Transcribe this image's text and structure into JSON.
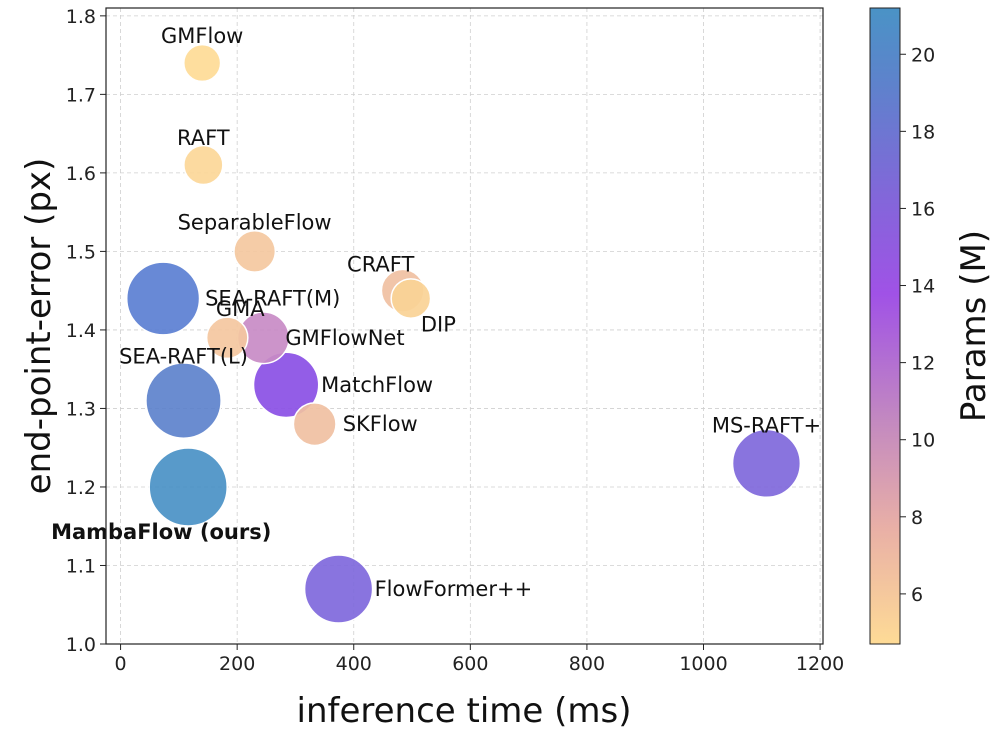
{
  "chart_data": {
    "type": "scatter",
    "title": "",
    "xlabel": "inference time (ms)",
    "ylabel": "end-point-error (px)",
    "xlim": [
      -25,
      1205
    ],
    "ylim": [
      1.0,
      1.81
    ],
    "xticks": [
      "0",
      "200",
      "400",
      "600",
      "800",
      "1000",
      "1200"
    ],
    "yticks": [
      "1.0",
      "1.1",
      "1.2",
      "1.3",
      "1.4",
      "1.5",
      "1.6",
      "1.7",
      "1.8"
    ],
    "grid": true,
    "colorbar": {
      "label": "Params (M)",
      "range": [
        4.7,
        21.2
      ],
      "ticks": [
        "6",
        "8",
        "10",
        "12",
        "14",
        "16",
        "18",
        "20"
      ],
      "colors": [
        "#fedb96",
        "#e9b0a6",
        "#c389c0",
        "#a052e6",
        "#7f69d8",
        "#5e82cc",
        "#4a93c6"
      ]
    },
    "points": [
      {
        "name": "GMFlow",
        "x": 140,
        "y": 1.74,
        "params": 4.7,
        "color": "#fedb96",
        "bold": false
      },
      {
        "name": "RAFT",
        "x": 142,
        "y": 1.61,
        "params": 5.3,
        "color": "#fcd798",
        "bold": false
      },
      {
        "name": "SeparableFlow",
        "x": 230,
        "y": 1.5,
        "params": 6.0,
        "color": "#f4c8a0",
        "bold": false
      },
      {
        "name": "CRAFT",
        "x": 484,
        "y": 1.45,
        "params": 6.3,
        "color": "#f0c0a2",
        "bold": false
      },
      {
        "name": "DIP",
        "x": 498,
        "y": 1.44,
        "params": 5.4,
        "color": "#fad396",
        "bold": false
      },
      {
        "name": "SEA-RAFT(M)",
        "x": 73,
        "y": 1.44,
        "params": 18.5,
        "color": "#5b7fd2",
        "bold": false
      },
      {
        "name": "GMA",
        "x": 183,
        "y": 1.39,
        "params": 5.9,
        "color": "#f4c7a0",
        "bold": false
      },
      {
        "name": "GMFlowNet",
        "x": 245,
        "y": 1.39,
        "params": 9.3,
        "color": "#c88bc6",
        "bold": false
      },
      {
        "name": "MatchFlow",
        "x": 284,
        "y": 1.33,
        "params": 14.8,
        "color": "#8a4fe5",
        "bold": false
      },
      {
        "name": "SEA-RAFT(L)",
        "x": 108,
        "y": 1.31,
        "params": 19.7,
        "color": "#5d82cc",
        "bold": false
      },
      {
        "name": "SKFlow",
        "x": 333,
        "y": 1.28,
        "params": 6.3,
        "color": "#f0c0a2",
        "bold": false
      },
      {
        "name": "MS-RAFT+",
        "x": 1108,
        "y": 1.23,
        "params": 16.0,
        "color": "#7f68db",
        "bold": false
      },
      {
        "name": "MambaFlow (ours)",
        "x": 116,
        "y": 1.2,
        "params": 21.2,
        "color": "#4a91c6",
        "bold": true
      },
      {
        "name": "FlowFormer++",
        "x": 374,
        "y": 1.07,
        "params": 16.1,
        "color": "#7f68dc",
        "bold": false
      }
    ]
  }
}
